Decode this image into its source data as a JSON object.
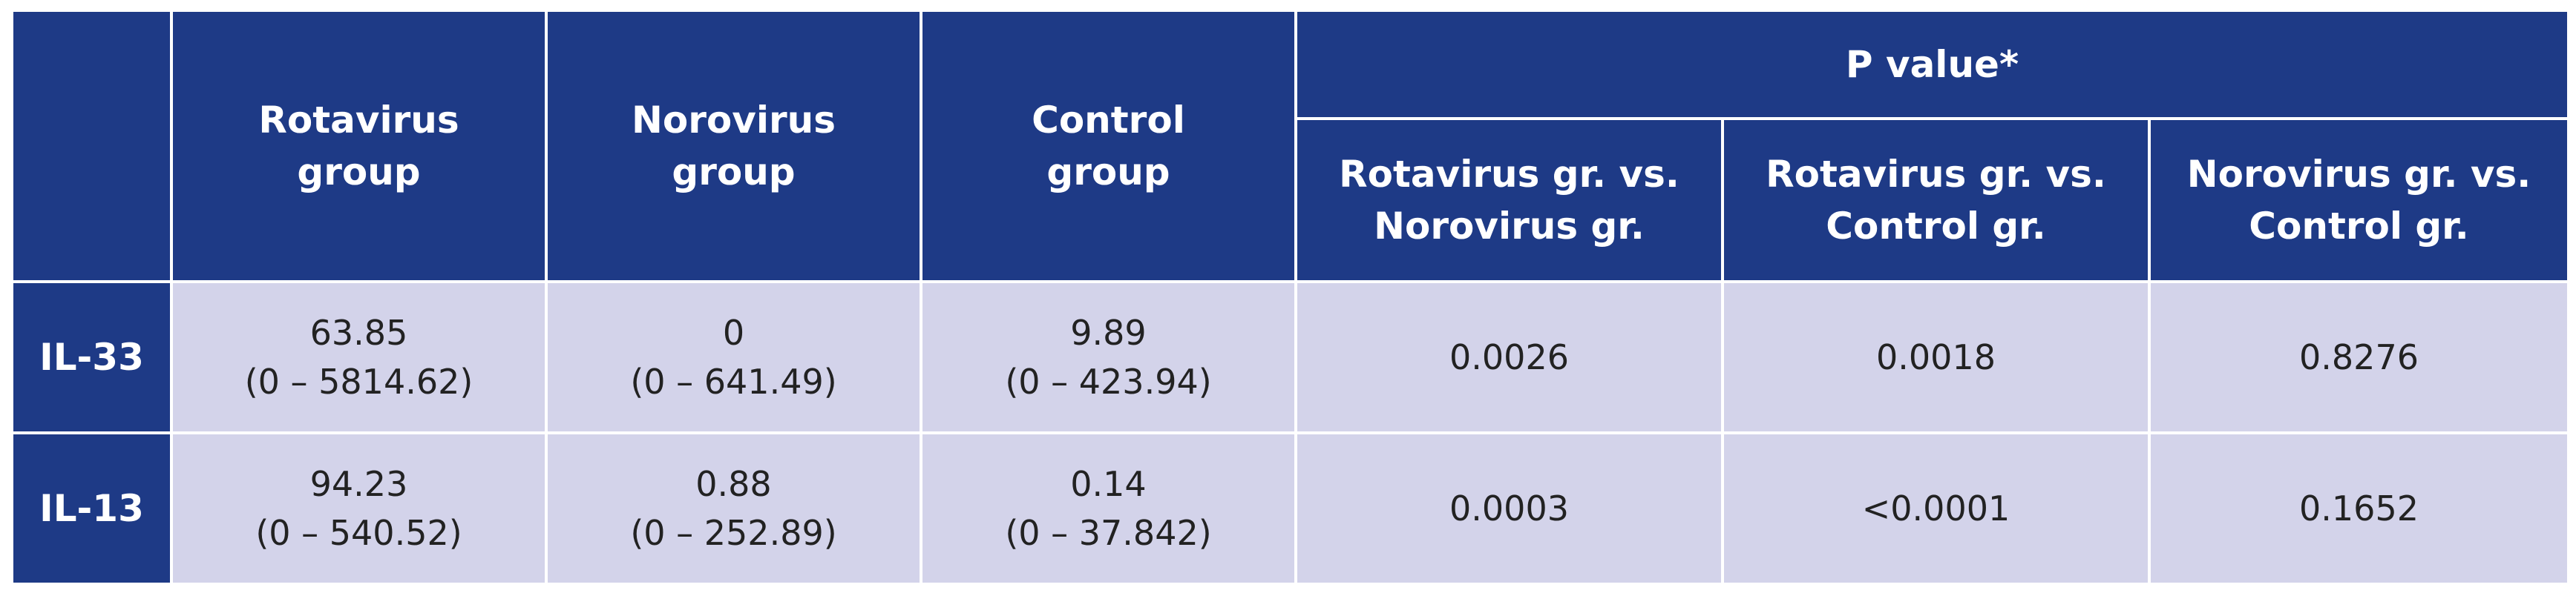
{
  "table": {
    "headers": {
      "corner": "",
      "rotavirus": [
        "Rotavirus",
        "group"
      ],
      "norovirus": [
        "Norovirus",
        "group"
      ],
      "control": [
        "Control",
        "group"
      ],
      "pvalue": "P value*",
      "sub": [
        [
          "Rotavirus gr. vs.",
          "Norovirus gr."
        ],
        [
          "Rotavirus gr. vs.",
          "Control gr."
        ],
        [
          "Norovirus gr. vs.",
          "Control gr."
        ]
      ]
    },
    "rows": [
      {
        "label": "IL-33",
        "rotavirus": [
          "63.85",
          "(0 – 5814.62)"
        ],
        "norovirus": [
          "0",
          "(0 – 641.49)"
        ],
        "control": [
          "9.89",
          "(0 – 423.94)"
        ],
        "p_rota_noro": "0.0026",
        "p_rota_ctrl": "0.0018",
        "p_noro_ctrl": "0.8276"
      },
      {
        "label": "IL-13",
        "rotavirus": [
          "94.23",
          "(0 – 540.52)"
        ],
        "norovirus": [
          "0.88",
          "(0 – 252.89)"
        ],
        "control": [
          "0.14",
          "(0 – 37.842)"
        ],
        "p_rota_noro": "0.0003",
        "p_rota_ctrl": "<0.0001",
        "p_noro_ctrl": "0.1652"
      }
    ],
    "colors": {
      "header_bg": "#1e3a86",
      "cell_bg": "#d3d3ea",
      "header_text": "#ffffff",
      "cell_text": "#222222"
    }
  }
}
